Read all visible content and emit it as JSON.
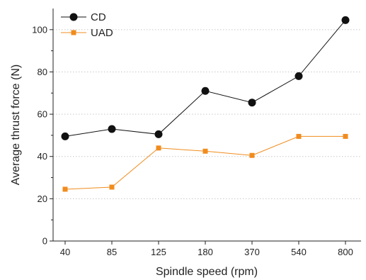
{
  "chart_data": {
    "type": "line",
    "xlabel": "Spindle speed (rpm)",
    "ylabel": "Average thrust force (N)",
    "categories": [
      "40",
      "85",
      "125",
      "180",
      "370",
      "540",
      "800"
    ],
    "ylim": [
      0,
      110
    ],
    "yticks": [
      "0",
      "20",
      "40",
      "60",
      "80",
      "100"
    ],
    "grid": "horizontal-dotted",
    "legend_position": "top-left",
    "series": [
      {
        "name": "CD",
        "values": [
          49.5,
          53,
          50.5,
          71,
          65.5,
          78,
          104.5
        ],
        "color": "#111111",
        "marker": "circle"
      },
      {
        "name": "UAD",
        "values": [
          24.5,
          25.5,
          44,
          42.5,
          40.5,
          49.5,
          49.5
        ],
        "color": "#f08c1e",
        "marker": "square"
      }
    ]
  }
}
